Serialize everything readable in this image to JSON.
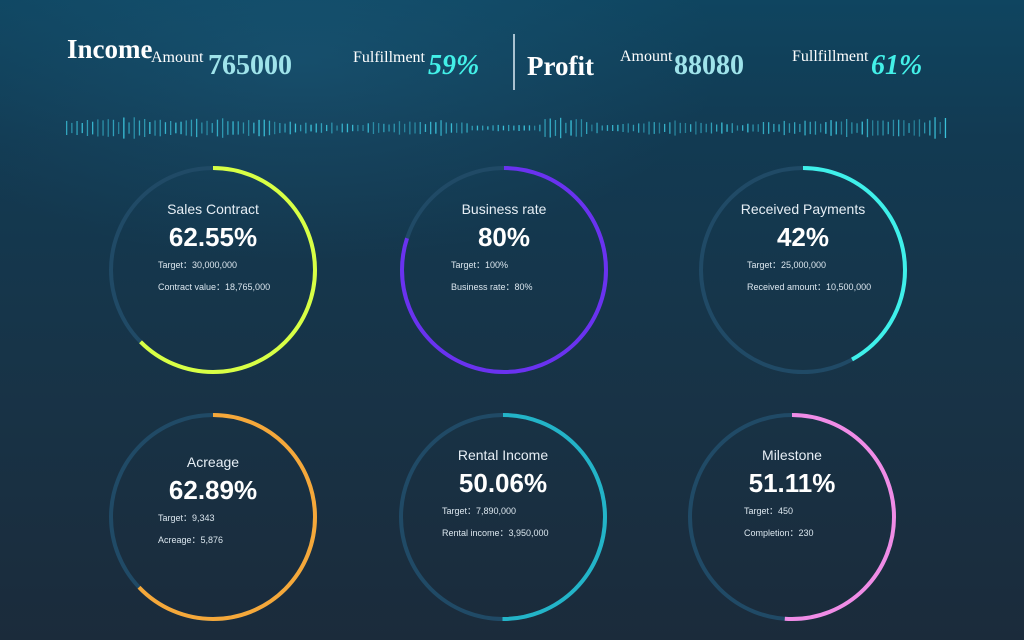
{
  "header": {
    "income": {
      "title": "Income",
      "amount_label": "Amount",
      "amount_value": "765000",
      "fulfillment_label": "Fulfillment",
      "fulfillment_value": "59%"
    },
    "profit": {
      "title": "Profit",
      "amount_label": "Amount",
      "amount_value": "88080",
      "fulfillment_label": "Fullfillment",
      "fulfillment_value": "61%"
    }
  },
  "gauges": [
    {
      "title": "Sales Contract",
      "percent_text": "62.55%",
      "fraction": 0.6255,
      "color": "#d8ff45",
      "color_end": "#e8f542",
      "line1": "Target：30,000,000",
      "line2": "Contract value：18,765,000"
    },
    {
      "title": "Business rate",
      "percent_text": "80%",
      "fraction": 0.8,
      "color": "#6a32f0",
      "color_end": "#7a3cff",
      "line1": "Target：100%",
      "line2": "Business rate：80%"
    },
    {
      "title": "Received Payments",
      "percent_text": "42%",
      "fraction": 0.42,
      "color": "#3ff0ea",
      "color_end": "#2ee8e4",
      "line1": "Target：25,000,000",
      "line2": "Received amount：10,500,000"
    },
    {
      "title": "Acreage",
      "percent_text": "62.89%",
      "fraction": 0.6289,
      "color": "#f5a83a",
      "color_end": "#f0a030",
      "line1": "Target：9,343",
      "line2": "Acreage：5,876"
    },
    {
      "title": "Rental Income",
      "percent_text": "50.06%",
      "fraction": 0.5006,
      "color": "#23b4c8",
      "color_end": "#1fb0c4",
      "line1": "Target：7,890,000",
      "line2": "Rental income：3,950,000"
    },
    {
      "title": "Milestone",
      "percent_text": "51.11%",
      "fraction": 0.5111,
      "color": "#f08ce6",
      "color_end": "#ea86e0",
      "line1": "Target：450",
      "line2": "Completion：230"
    }
  ],
  "colors": {
    "track": "#204a66",
    "wave_bar": "#3fd0e8",
    "value_text": "#9fe3ea",
    "pct_text": "#43f0e8"
  }
}
